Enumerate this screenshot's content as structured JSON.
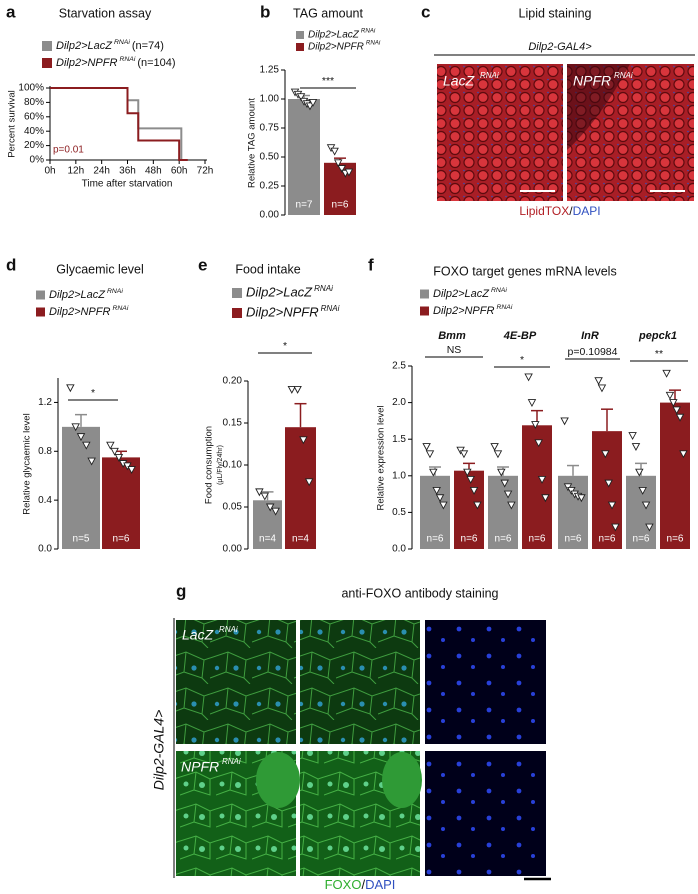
{
  "chart_data": [
    {
      "panel": "a",
      "type": "line",
      "title": "Starvation assay",
      "xlabel": "Time after starvation",
      "ylabel": "Percent survival",
      "xlim": [
        0,
        72
      ],
      "xticks": [
        {
          "value": 0,
          "label": "0h"
        },
        {
          "value": 12,
          "label": "12h"
        },
        {
          "value": 24,
          "label": "24h"
        },
        {
          "value": 36,
          "label": "36h"
        },
        {
          "value": 48,
          "label": "48h"
        },
        {
          "value": 60,
          "label": "60h"
        },
        {
          "value": 72,
          "label": "72h"
        }
      ],
      "ylim": [
        0,
        100
      ],
      "yticks": [
        {
          "value": 0,
          "label": "0%"
        },
        {
          "value": 20,
          "label": "20%"
        },
        {
          "value": 40,
          "label": "40%"
        },
        {
          "value": 60,
          "label": "60%"
        },
        {
          "value": 80,
          "label": "80%"
        },
        {
          "value": 100,
          "label": "100%"
        }
      ],
      "series": [
        {
          "name": "Dilp2>LacZ",
          "name_sup": "RNAi",
          "name_note": "(n=74)",
          "color": "#8c8c8c",
          "x": [
            0,
            36,
            36,
            41,
            41,
            61,
            61,
            64
          ],
          "values": [
            100,
            100,
            83,
            83,
            44,
            44,
            0,
            0
          ]
        },
        {
          "name": "Dilp2>NPFR",
          "name_sup": "RNAi",
          "name_note": "(n=104)",
          "color": "#8b1c1f",
          "x": [
            0,
            36,
            36,
            41,
            41,
            60,
            60,
            64
          ],
          "values": [
            100,
            100,
            65,
            65,
            27,
            27,
            0,
            0
          ]
        }
      ],
      "annotation": "p=0.01"
    },
    {
      "panel": "b",
      "type": "bar",
      "title": "TAG amount",
      "ylabel": "Relative TAG amount",
      "ylim": [
        0,
        1.25
      ],
      "yticks": [
        {
          "value": 0,
          "label": "0.00"
        },
        0.25,
        {
          "value": 0.5,
          "label": "0.50"
        },
        0.75,
        {
          "value": 1,
          "label": "1.00"
        },
        1.25
      ],
      "series": [
        {
          "name": "Dilp2>LacZ",
          "name_sup": "RNAi",
          "color": "#8c8c8c",
          "values": [
            1.0
          ],
          "errors": [
            0.03
          ],
          "points": [
            [
              1.06,
              1.04,
              1.02,
              0.98,
              0.96,
              0.94,
              0.97
            ]
          ],
          "n_labels": [
            "n=7"
          ]
        },
        {
          "name": "Dilp2>NPFR",
          "name_sup": "RNAi",
          "color": "#8b1c1f",
          "values": [
            0.45
          ],
          "errors": [
            0.04
          ],
          "points": [
            [
              0.58,
              0.55,
              0.45,
              0.4,
              0.36,
              0.37
            ]
          ],
          "n_labels": [
            "n=6"
          ]
        }
      ],
      "annotations": [
        "***"
      ]
    },
    {
      "panel": "d",
      "type": "bar",
      "title": "Glycaemic level",
      "ylabel": "Relative glycaemic level",
      "ylim": [
        0,
        1.4
      ],
      "yticks": [
        {
          "value": 0,
          "label": "0.0"
        },
        0.4,
        0.8,
        1.2
      ],
      "series": [
        {
          "name": "Dilp2>LacZ",
          "name_sup": "RNAi",
          "color": "#8c8c8c",
          "values": [
            1.0
          ],
          "errors": [
            0.1
          ],
          "points": [
            [
              1.32,
              1.0,
              0.92,
              0.85,
              0.72
            ]
          ],
          "n_labels": [
            "n=5"
          ]
        },
        {
          "name": "Dilp2>NPFR",
          "name_sup": "RNAi",
          "color": "#8b1c1f",
          "values": [
            0.75
          ],
          "errors": [
            0.05
          ],
          "points": [
            [
              0.85,
              0.8,
              0.75,
              0.7,
              0.68,
              0.65
            ]
          ],
          "n_labels": [
            "n=6"
          ]
        }
      ],
      "annotations": [
        "*"
      ]
    },
    {
      "panel": "e",
      "type": "bar",
      "title": "Food intake",
      "ylabel": "Food consumption",
      "ylabel_sub": "(µL/Fly/24hr)",
      "ylim": [
        0,
        0.2
      ],
      "yticks": [
        {
          "value": 0,
          "label": "0.00"
        },
        0.05,
        {
          "value": 0.1,
          "label": "0.10"
        },
        0.15,
        {
          "value": 0.2,
          "label": "0.20"
        }
      ],
      "series": [
        {
          "name": "Dilp2>LacZ",
          "name_sup": "RNAi",
          "color": "#8c8c8c",
          "values": [
            0.058
          ],
          "errors": [
            0.01
          ],
          "points": [
            [
              0.068,
              0.063,
              0.05,
              0.045
            ]
          ],
          "n_labels": [
            "n=4"
          ]
        },
        {
          "name": "Dilp2>NPFR",
          "name_sup": "RNAi",
          "color": "#8b1c1f",
          "values": [
            0.145
          ],
          "errors": [
            0.028
          ],
          "points": [
            [
              0.19,
              0.19,
              0.13,
              0.08
            ]
          ],
          "n_labels": [
            "n=4"
          ]
        }
      ],
      "annotations": [
        "*"
      ]
    },
    {
      "panel": "f",
      "type": "bar",
      "title": "FOXO target genes mRNA levels",
      "ylabel": "Relative expression level",
      "categories": [
        "Bmm",
        "4E-BP",
        "InR",
        "pepck1"
      ],
      "ylim": [
        0,
        2.5
      ],
      "yticks": [
        {
          "value": 0,
          "label": "0.0"
        },
        0.5,
        {
          "value": 1,
          "label": "1.0"
        },
        1.5,
        {
          "value": 2,
          "label": "2.0"
        },
        2.5
      ],
      "series": [
        {
          "name": "Dilp2>LacZ",
          "name_sup": "RNAi",
          "color": "#8c8c8c",
          "values": [
            1.0,
            1.0,
            1.0,
            1.0
          ],
          "errors": [
            0.12,
            0.12,
            0.14,
            0.17
          ],
          "points": [
            [
              1.4,
              1.3,
              1.05,
              0.8,
              0.7,
              0.6
            ],
            [
              1.4,
              1.3,
              1.05,
              0.9,
              0.75,
              0.6
            ],
            [
              1.75,
              0.85,
              0.8,
              0.75,
              0.72,
              0.7
            ],
            [
              1.55,
              1.4,
              1.05,
              0.8,
              0.6,
              0.3
            ]
          ],
          "n_labels": [
            "n=6",
            "n=6",
            "n=6",
            "n=6"
          ]
        },
        {
          "name": "Dilp2>NPFR",
          "name_sup": "RNAi",
          "color": "#8b1c1f",
          "values": [
            1.07,
            1.69,
            1.61,
            2.0
          ],
          "errors": [
            0.1,
            0.2,
            0.3,
            0.17
          ],
          "points": [
            [
              1.35,
              1.3,
              1.05,
              0.95,
              0.8,
              0.6
            ],
            [
              2.35,
              2.0,
              1.7,
              1.45,
              0.95,
              0.7
            ],
            [
              2.3,
              2.2,
              1.3,
              0.9,
              0.6,
              0.3
            ],
            [
              2.4,
              2.1,
              2.0,
              1.9,
              1.8,
              1.3
            ]
          ],
          "n_labels": [
            "n=6",
            "n=6",
            "n=6",
            "n=6"
          ]
        }
      ],
      "annotations": [
        "NS",
        "*",
        "p=0.10984",
        "**"
      ]
    }
  ],
  "image_panels": [
    {
      "panel": "c",
      "title": "Lipid staining",
      "genotype": "Dilp2-GAL4>",
      "conditions": [
        {
          "name": "LacZ",
          "sup": "RNAi"
        },
        {
          "name": "NPFR",
          "sup": "RNAi"
        }
      ],
      "stain": [
        "LipidTOX",
        "/",
        "DAPI"
      ]
    },
    {
      "panel": "g",
      "title": "anti-FOXO antibody staining",
      "genotype": "Dilp2-GAL4>",
      "conditions": [
        {
          "name": "LacZ",
          "sup": "RNAi"
        },
        {
          "name": "NPFR",
          "sup": "RNAi"
        }
      ],
      "stain": [
        "FOXO",
        "/",
        "DAPI"
      ]
    }
  ]
}
